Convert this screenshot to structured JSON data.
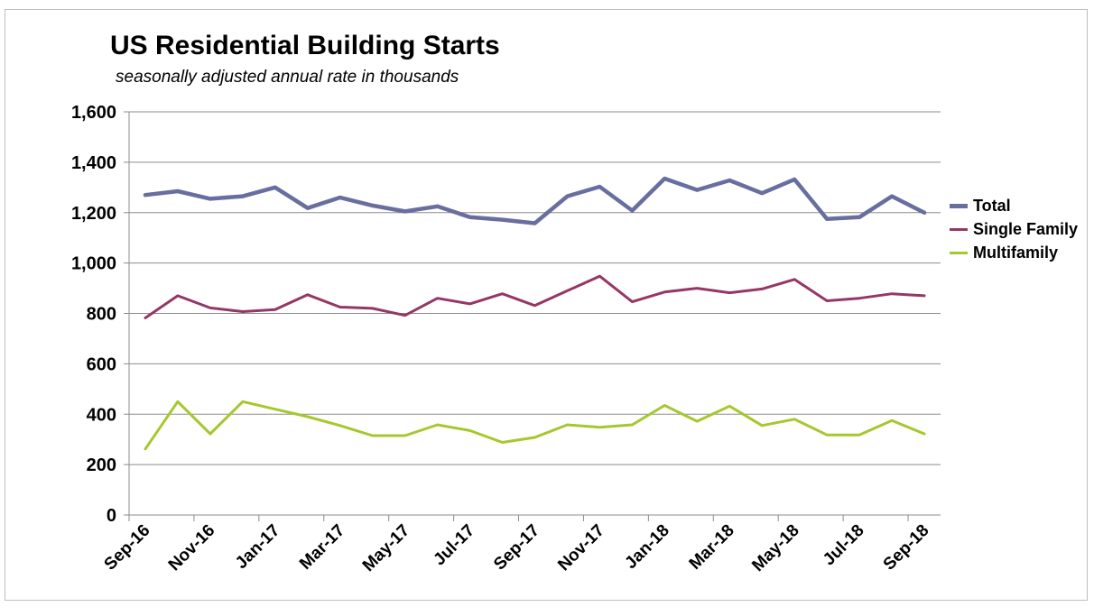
{
  "chart_data": {
    "type": "line",
    "title": "US Residential Building Starts",
    "subtitle": "seasonally adjusted annual rate in thousands",
    "ylim": [
      0,
      1600
    ],
    "y_ticks": [
      0,
      200,
      400,
      600,
      800,
      1000,
      1200,
      1400,
      1600
    ],
    "y_tick_labels": [
      "0",
      "200",
      "400",
      "600",
      "800",
      "1,000",
      "1,200",
      "1,400",
      "1,600"
    ],
    "x": [
      "Sep-16",
      "Oct-16",
      "Nov-16",
      "Dec-16",
      "Jan-17",
      "Feb-17",
      "Mar-17",
      "Apr-17",
      "May-17",
      "Jun-17",
      "Jul-17",
      "Aug-17",
      "Sep-17",
      "Oct-17",
      "Nov-17",
      "Dec-17",
      "Jan-18",
      "Feb-18",
      "Mar-18",
      "Apr-18",
      "May-18",
      "Jun-18",
      "Jul-18",
      "Aug-18",
      "Sep-18"
    ],
    "x_tick_labels": [
      "Sep-16",
      "Nov-16",
      "Jan-17",
      "Mar-17",
      "May-17",
      "Jul-17",
      "Sep-17",
      "Nov-17",
      "Jan-18",
      "Mar-18",
      "May-18",
      "Jul-18",
      "Sep-18"
    ],
    "grid": "horizontal",
    "legend_position": "right",
    "series": [
      {
        "name": "Total",
        "color": "#686e9f",
        "values": [
          1270,
          1285,
          1255,
          1265,
          1300,
          1218,
          1260,
          1228,
          1205,
          1225,
          1182,
          1172,
          1158,
          1265,
          1303,
          1208,
          1335,
          1290,
          1328,
          1277,
          1332,
          1175,
          1182,
          1265,
          1200
        ]
      },
      {
        "name": "Single Family",
        "color": "#953766",
        "values": [
          782,
          870,
          822,
          807,
          815,
          874,
          825,
          820,
          792,
          860,
          838,
          878,
          831,
          890,
          948,
          846,
          885,
          900,
          882,
          897,
          935,
          850,
          860,
          878,
          870
        ]
      },
      {
        "name": "Multifamily",
        "color": "#a4c82d",
        "values": [
          262,
          450,
          322,
          450,
          420,
          390,
          355,
          315,
          315,
          358,
          335,
          288,
          308,
          358,
          348,
          358,
          435,
          372,
          432,
          355,
          380,
          318,
          318,
          375,
          322
        ]
      }
    ]
  }
}
